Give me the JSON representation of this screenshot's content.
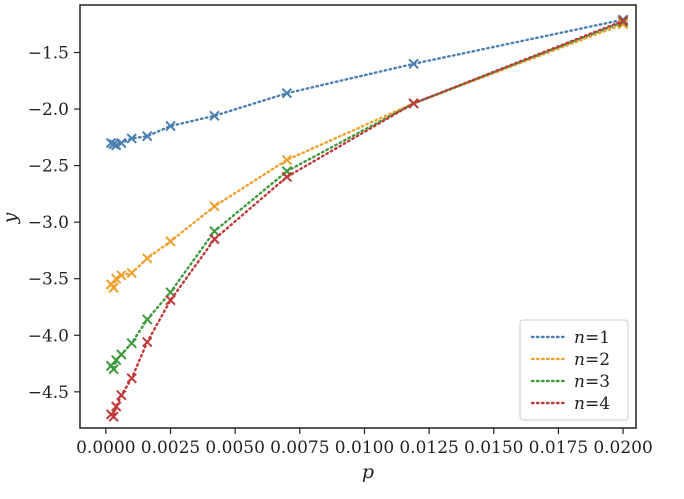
{
  "chart_data": {
    "type": "line",
    "xlabel": "p",
    "ylabel": "y",
    "xlim": [
      -0.001,
      0.0205
    ],
    "ylim": [
      -4.82,
      -1.08
    ],
    "x_ticks": [
      0.0,
      0.0025,
      0.005,
      0.0075,
      0.01,
      0.0125,
      0.015,
      0.0175,
      0.02
    ],
    "x_tick_labels": [
      "0.0000",
      "0.0025",
      "0.0050",
      "0.0075",
      "0.0100",
      "0.0125",
      "0.0150",
      "0.0175",
      "0.0200"
    ],
    "y_ticks": [
      -4.5,
      -4.0,
      -3.5,
      -3.0,
      -2.5,
      -2.0,
      -1.5
    ],
    "y_tick_labels": [
      "−4.5",
      "−4.0",
      "−3.5",
      "−3.0",
      "−2.5",
      "−2.0",
      "−1.5"
    ],
    "grid": false,
    "legend_position": "bottom-right",
    "line_style": "dotted",
    "marker": "x",
    "series": [
      {
        "name": "n=1",
        "var": "n",
        "eq": "=1",
        "color": "#4a7fb0",
        "x": [
          0.0002,
          0.0003,
          0.0004,
          0.0006,
          0.001,
          0.0016,
          0.0025,
          0.0042,
          0.007,
          0.0119,
          0.02
        ],
        "y": [
          -2.3,
          -2.31,
          -2.32,
          -2.3,
          -2.26,
          -2.24,
          -2.15,
          -2.06,
          -1.86,
          -1.6,
          -1.21
        ]
      },
      {
        "name": "n=2",
        "var": "n",
        "eq": "=2",
        "color": "#f0a02c",
        "x": [
          0.0002,
          0.0003,
          0.0004,
          0.0006,
          0.001,
          0.0016,
          0.0025,
          0.0042,
          0.007,
          0.0119,
          0.02
        ],
        "y": [
          -3.55,
          -3.58,
          -3.5,
          -3.47,
          -3.45,
          -3.32,
          -3.17,
          -2.86,
          -2.45,
          -1.95,
          -1.25
        ]
      },
      {
        "name": "n=3",
        "var": "n",
        "eq": "=3",
        "color": "#3f9a3f",
        "x": [
          0.0002,
          0.0003,
          0.0004,
          0.0006,
          0.001,
          0.0016,
          0.0025,
          0.0042,
          0.007,
          0.0119,
          0.02
        ],
        "y": [
          -4.27,
          -4.3,
          -4.22,
          -4.17,
          -4.07,
          -3.86,
          -3.62,
          -3.08,
          -2.55,
          -1.95,
          -1.23
        ]
      },
      {
        "name": "n=4",
        "var": "n",
        "eq": "=4",
        "color": "#c0393b",
        "x": [
          0.0002,
          0.0003,
          0.0004,
          0.0006,
          0.001,
          0.0016,
          0.0025,
          0.0042,
          0.007,
          0.0119,
          0.02
        ],
        "y": [
          -4.7,
          -4.72,
          -4.63,
          -4.53,
          -4.38,
          -4.06,
          -3.69,
          -3.15,
          -2.6,
          -1.95,
          -1.22
        ]
      }
    ]
  }
}
